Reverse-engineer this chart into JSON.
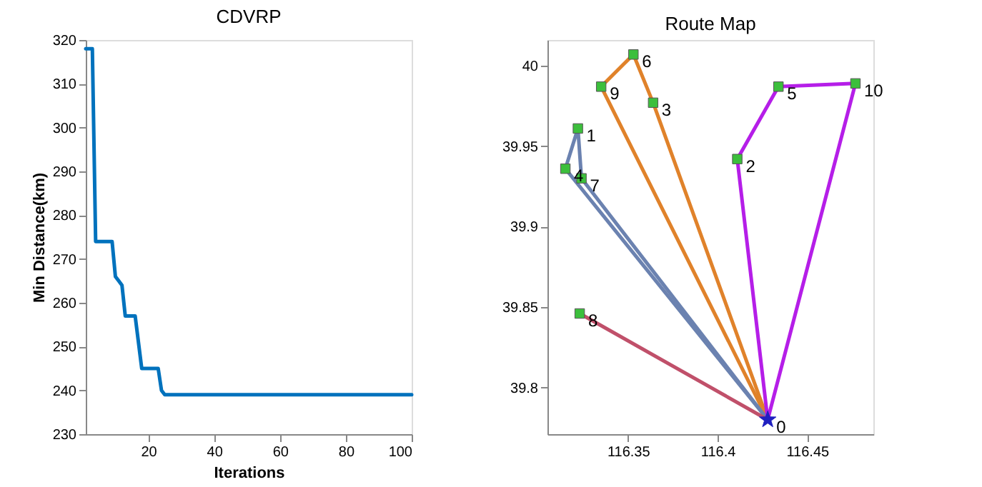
{
  "chart_data": [
    {
      "type": "line",
      "title": "CDVRP",
      "xlabel": "Iterations",
      "ylabel": "Min Distance(km)",
      "xlim": [
        1,
        100
      ],
      "xticks": [
        20,
        40,
        60,
        80,
        100
      ],
      "ylim": [
        230,
        320
      ],
      "yticks": [
        230,
        240,
        250,
        260,
        270,
        280,
        290,
        300,
        310,
        320
      ],
      "grid": false,
      "marker": "none",
      "series": [
        {
          "color": "#0072bd",
          "x": [
            1,
            3,
            4,
            9,
            10,
            11,
            12,
            13,
            16,
            18,
            23,
            24,
            25,
            100
          ],
          "values": [
            318,
            318,
            274,
            274,
            266,
            265,
            264,
            257,
            257,
            245,
            245,
            240,
            239,
            239
          ]
        }
      ]
    },
    {
      "type": "line",
      "title": "Route Map",
      "xlim": [
        116.305,
        116.487
      ],
      "xticks": [
        116.35,
        116.4,
        116.45
      ],
      "ylim": [
        39.771,
        40.016
      ],
      "yticks": [
        39.8,
        39.85,
        39.9,
        39.95,
        40
      ],
      "grid": false,
      "series": [
        {
          "color": "#e0822a",
          "x": [
            116.428,
            116.364
          ],
          "values": [
            39.78,
            39.977
          ]
        },
        {
          "color": "#e0822a",
          "x": [
            116.364,
            116.353
          ],
          "values": [
            39.977,
            40.007
          ]
        },
        {
          "color": "#e0822a",
          "x": [
            116.353,
            116.335
          ],
          "values": [
            40.007,
            39.987
          ]
        },
        {
          "color": "#e0822a",
          "x": [
            116.335,
            116.428
          ],
          "values": [
            39.987,
            39.78
          ]
        },
        {
          "color": "#6b82b0",
          "x": [
            116.428,
            116.324
          ],
          "values": [
            39.78,
            39.93
          ]
        },
        {
          "color": "#6b82b0",
          "x": [
            116.324,
            116.322
          ],
          "values": [
            39.93,
            39.961
          ]
        },
        {
          "color": "#6b82b0",
          "x": [
            116.322,
            116.315
          ],
          "values": [
            39.961,
            39.936
          ]
        },
        {
          "color": "#6b82b0",
          "x": [
            116.315,
            116.428
          ],
          "values": [
            39.936,
            39.78
          ]
        },
        {
          "color": "#b51ee8",
          "x": [
            116.428,
            116.477
          ],
          "values": [
            39.78,
            39.989
          ]
        },
        {
          "color": "#b51ee8",
          "x": [
            116.477,
            116.434
          ],
          "values": [
            39.989,
            39.987
          ]
        },
        {
          "color": "#b51ee8",
          "x": [
            116.434,
            116.411
          ],
          "values": [
            39.987,
            39.942
          ]
        },
        {
          "color": "#b51ee8",
          "x": [
            116.411,
            116.428
          ],
          "values": [
            39.942,
            39.78
          ]
        },
        {
          "color": "#c0506a",
          "x": [
            116.428,
            116.323
          ],
          "values": [
            39.78,
            39.846
          ]
        },
        {
          "type": "scatter",
          "color": "#3cbf3c",
          "marker": "square",
          "x": [
            116.322,
            116.411,
            116.364,
            116.315,
            116.434,
            116.353,
            116.324,
            116.323,
            116.335,
            116.477
          ],
          "values": [
            39.961,
            39.942,
            39.977,
            39.936,
            39.987,
            40.007,
            39.93,
            39.846,
            39.987,
            39.989
          ]
        },
        {
          "type": "scatter",
          "color": "#2020c0",
          "marker": "star",
          "x": [
            116.428
          ],
          "values": [
            39.78
          ]
        }
      ],
      "annotations": [
        {
          "text": "0",
          "x": 116.428,
          "y": 39.78
        },
        {
          "text": "1",
          "x": 116.322,
          "y": 39.961
        },
        {
          "text": "2",
          "x": 116.411,
          "y": 39.942
        },
        {
          "text": "3",
          "x": 116.364,
          "y": 39.977
        },
        {
          "text": "4",
          "x": 116.315,
          "y": 39.936
        },
        {
          "text": "5",
          "x": 116.434,
          "y": 39.987
        },
        {
          "text": "6",
          "x": 116.353,
          "y": 40.007
        },
        {
          "text": "7",
          "x": 116.324,
          "y": 39.93
        },
        {
          "text": "8",
          "x": 116.323,
          "y": 39.846
        },
        {
          "text": "9",
          "x": 116.335,
          "y": 39.987
        },
        {
          "text": "10",
          "x": 116.477,
          "y": 39.989
        }
      ]
    }
  ]
}
